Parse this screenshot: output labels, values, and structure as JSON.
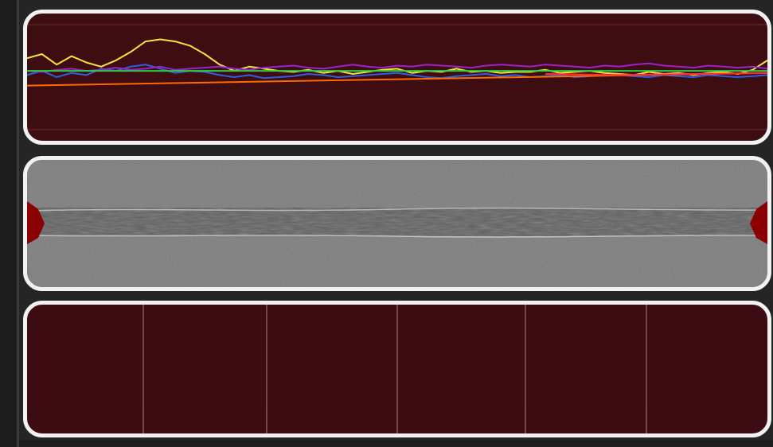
{
  "panels": {
    "graph": {
      "background": "#3d0d12",
      "border": "#f2f2f2"
    },
    "image": {
      "tone": "#7b7b7b",
      "seam_tone": "#5f5f5f",
      "marker_color": "#8b0000"
    },
    "grid": {
      "background": "#3c0c12",
      "divider_color": "#a87a7e"
    }
  },
  "chart_data": {
    "type": "line",
    "title": "",
    "xlabel": "",
    "ylabel": "",
    "grid": false,
    "xlim": [
      0,
      100
    ],
    "ylim": [
      0,
      100
    ],
    "series": [
      {
        "color": "#f5e53a",
        "x": [
          0,
          2,
          4,
          6,
          8,
          10,
          12,
          14,
          16,
          18,
          20,
          22,
          24,
          26,
          28,
          30,
          32,
          34,
          36,
          38,
          40,
          42,
          44,
          46,
          48,
          50,
          52,
          54,
          56,
          58,
          60,
          62,
          64,
          66,
          68,
          70,
          72,
          74,
          76,
          78,
          80,
          82,
          84,
          86,
          88,
          90,
          92,
          94,
          96,
          98,
          100
        ],
        "y": [
          68,
          72,
          62,
          70,
          64,
          60,
          66,
          74,
          84,
          86,
          84,
          80,
          72,
          62,
          56,
          60,
          58,
          56,
          55,
          57,
          54,
          56,
          53,
          55,
          57,
          58,
          54,
          56,
          55,
          58,
          55,
          56,
          54,
          55,
          55,
          57,
          54,
          55,
          56,
          54,
          53,
          52,
          55,
          53,
          54,
          52,
          54,
          55,
          53,
          57,
          66
        ]
      },
      {
        "color": "#2f5fe0",
        "x": [
          0,
          2,
          4,
          6,
          8,
          10,
          12,
          14,
          16,
          18,
          20,
          22,
          24,
          26,
          28,
          30,
          32,
          34,
          36,
          38,
          40,
          42,
          44,
          46,
          48,
          50,
          52,
          54,
          56,
          58,
          60,
          62,
          64,
          66,
          68,
          70,
          72,
          74,
          76,
          78,
          80,
          82,
          84,
          86,
          88,
          90,
          92,
          94,
          96,
          98,
          100
        ],
        "y": [
          52,
          56,
          50,
          54,
          52,
          58,
          56,
          60,
          62,
          58,
          54,
          56,
          55,
          52,
          50,
          52,
          49,
          50,
          51,
          53,
          52,
          50,
          51,
          52,
          53,
          54,
          52,
          50,
          49,
          51,
          52,
          53,
          51,
          52,
          50,
          51,
          52,
          50,
          51,
          52,
          52,
          51,
          50,
          52,
          51,
          50,
          52,
          51,
          50,
          51,
          52
        ]
      },
      {
        "color": "#9b22c8",
        "x": [
          0,
          2,
          4,
          6,
          8,
          10,
          12,
          14,
          16,
          18,
          20,
          22,
          24,
          26,
          28,
          30,
          32,
          34,
          36,
          38,
          40,
          42,
          44,
          46,
          48,
          50,
          52,
          54,
          56,
          58,
          60,
          62,
          64,
          66,
          68,
          70,
          72,
          74,
          76,
          78,
          80,
          82,
          84,
          86,
          88,
          90,
          92,
          94,
          96,
          98,
          100
        ],
        "y": [
          56,
          55,
          57,
          58,
          56,
          57,
          59,
          57,
          58,
          60,
          57,
          58,
          59,
          60,
          58,
          57,
          59,
          60,
          61,
          59,
          58,
          60,
          62,
          60,
          59,
          61,
          60,
          62,
          61,
          60,
          59,
          61,
          62,
          61,
          60,
          62,
          61,
          60,
          59,
          61,
          60,
          62,
          63,
          61,
          60,
          59,
          61,
          60,
          59,
          60,
          58
        ]
      },
      {
        "color": "#2ecc40",
        "x": [
          0,
          100
        ],
        "y": [
          56,
          56
        ]
      },
      {
        "color": "#ff6a00",
        "x": [
          0,
          100
        ],
        "y": [
          42,
          54
        ]
      },
      {
        "color": "#ff2a3a",
        "x": [
          70,
          80,
          90,
          100
        ],
        "y": [
          53,
          52,
          53,
          54
        ]
      }
    ]
  },
  "image_markers": {
    "count": 2,
    "sides": [
      "left",
      "right"
    ]
  },
  "grid_columns": {
    "count": 6
  }
}
